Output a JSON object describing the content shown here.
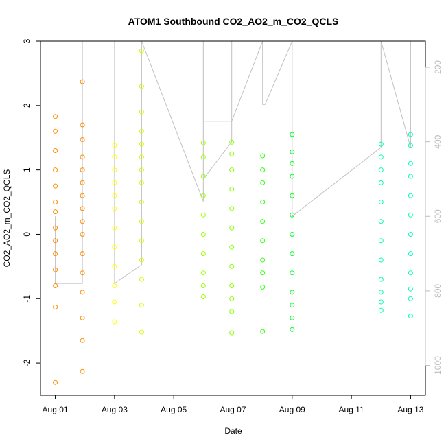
{
  "chart_data": {
    "type": "scatter",
    "title": "ATOM1 Southbound CO2_AO2_m_CO2_QCLS",
    "xlabel": "Date",
    "ylabel": "CO2_AO2_m_CO2_QCLS",
    "x_ticks": [
      "Aug 01",
      "Aug 03",
      "Aug 05",
      "Aug 07",
      "Aug 09",
      "Aug 11",
      "Aug 13"
    ],
    "y_ticks": [
      "-2",
      "-1",
      "0",
      "1",
      "2",
      "3"
    ],
    "y_right_ticks": [
      "200",
      "400",
      "600",
      "800",
      "1000"
    ],
    "xlim": [
      "2016-07-31T12:00",
      "2016-08-13T12:00"
    ],
    "ylim": [
      -2.5,
      3.0
    ],
    "y_right_lim": [
      1080,
      130
    ],
    "y_right_inverted": true,
    "grid": false,
    "colors": {
      "orange": "#ff8c00",
      "yellow": "#ffff00",
      "lime": "#ccff00",
      "green": "#66ff00",
      "bright_green": "#00ff22",
      "cyan": "#00ffcc",
      "track_line": "#c0c0c0",
      "right_axis": "#bdbdbd"
    },
    "series": [
      {
        "color": "#ff8c00",
        "x": [
          "2016-08-01T00:00",
          "2016-08-01T00:00",
          "2016-08-01T00:00",
          "2016-08-01T00:00",
          "2016-08-01T00:00",
          "2016-08-01T00:00",
          "2016-08-01T00:00",
          "2016-08-01T00:00",
          "2016-08-01T00:00",
          "2016-08-01T00:00",
          "2016-08-01T00:00",
          "2016-08-01T00:00",
          "2016-08-01T00:00",
          "2016-08-01T00:00"
        ],
        "y": [
          1.83,
          1.6,
          1.3,
          1.0,
          0.75,
          0.5,
          0.35,
          0.1,
          -0.1,
          -0.3,
          -0.55,
          -0.8,
          -1.13,
          -2.3
        ]
      },
      {
        "color": "#ff8c00",
        "x": [
          "2016-08-01T22:00",
          "2016-08-01T22:00",
          "2016-08-01T22:00",
          "2016-08-01T22:00",
          "2016-08-01T22:00",
          "2016-08-01T22:00",
          "2016-08-01T22:00",
          "2016-08-01T22:00",
          "2016-08-01T22:00",
          "2016-08-01T22:00",
          "2016-08-01T22:00",
          "2016-08-01T22:00",
          "2016-08-01T22:00",
          "2016-08-01T22:00",
          "2016-08-01T22:00",
          "2016-08-01T22:00"
        ],
        "y": [
          2.37,
          1.7,
          1.47,
          1.2,
          1.0,
          0.8,
          0.6,
          0.4,
          0.2,
          0.0,
          -0.3,
          -0.6,
          -0.9,
          -1.3,
          -1.65,
          -2.13
        ]
      },
      {
        "color": "#ffff00",
        "x": [
          "2016-08-03T00:00",
          "2016-08-03T00:00",
          "2016-08-03T00:00",
          "2016-08-03T00:00",
          "2016-08-03T00:00",
          "2016-08-03T00:00",
          "2016-08-03T00:00",
          "2016-08-03T00:00",
          "2016-08-03T00:00",
          "2016-08-03T00:00",
          "2016-08-03T00:00",
          "2016-08-03T00:00"
        ],
        "y": [
          1.38,
          1.2,
          1.0,
          0.8,
          0.6,
          0.4,
          0.1,
          -0.2,
          -0.5,
          -0.8,
          -1.05,
          -1.36
        ]
      },
      {
        "color": "#ccff00",
        "x": [
          "2016-08-03T22:00",
          "2016-08-03T22:00",
          "2016-08-03T22:00",
          "2016-08-03T22:00",
          "2016-08-03T22:00",
          "2016-08-03T22:00",
          "2016-08-03T22:00",
          "2016-08-03T22:00",
          "2016-08-03T22:00",
          "2016-08-03T22:00",
          "2016-08-03T22:00",
          "2016-08-03T22:00",
          "2016-08-03T22:00",
          "2016-08-03T22:00",
          "2016-08-03T22:00"
        ],
        "y": [
          2.85,
          2.3,
          1.9,
          1.6,
          1.4,
          1.2,
          1.0,
          0.8,
          0.5,
          0.2,
          -0.1,
          -0.4,
          -0.7,
          -1.1,
          -1.52
        ]
      },
      {
        "color": "#99ff00",
        "x": [
          "2016-08-06T00:00",
          "2016-08-06T00:00",
          "2016-08-06T00:00",
          "2016-08-06T00:00",
          "2016-08-06T00:00",
          "2016-08-06T00:00",
          "2016-08-06T00:00",
          "2016-08-06T00:00",
          "2016-08-06T00:00",
          "2016-08-06T00:00"
        ],
        "y": [
          1.42,
          1.2,
          0.9,
          0.6,
          0.3,
          0.0,
          -0.3,
          -0.6,
          -0.8,
          -0.97
        ]
      },
      {
        "color": "#88ff00",
        "x": [
          "2016-08-06T23:00",
          "2016-08-06T23:00",
          "2016-08-06T23:00",
          "2016-08-06T23:00",
          "2016-08-06T23:00",
          "2016-08-06T23:00",
          "2016-08-06T23:00",
          "2016-08-06T23:00",
          "2016-08-06T23:00",
          "2016-08-06T23:00",
          "2016-08-06T23:00",
          "2016-08-06T23:00"
        ],
        "y": [
          1.43,
          1.25,
          1.0,
          0.7,
          0.4,
          0.1,
          -0.2,
          -0.5,
          -0.8,
          -1.0,
          -1.2,
          -1.53
        ]
      },
      {
        "color": "#33ff11",
        "x": [
          "2016-08-08T00:00",
          "2016-08-08T00:00",
          "2016-08-08T00:00",
          "2016-08-08T00:00",
          "2016-08-08T00:00",
          "2016-08-08T00:00",
          "2016-08-08T00:00",
          "2016-08-08T00:00",
          "2016-08-08T00:00",
          "2016-08-08T00:00"
        ],
        "y": [
          1.22,
          1.0,
          0.8,
          0.5,
          0.2,
          -0.1,
          -0.4,
          -0.6,
          -0.82,
          -1.51
        ]
      },
      {
        "color": "#00ff22",
        "x": [
          "2016-08-09T00:00",
          "2016-08-09T00:00",
          "2016-08-09T00:00",
          "2016-08-09T00:00",
          "2016-08-09T00:00",
          "2016-08-09T00:00",
          "2016-08-09T00:00",
          "2016-08-09T00:00",
          "2016-08-09T00:00",
          "2016-08-09T00:00",
          "2016-08-09T00:00",
          "2016-08-09T00:00",
          "2016-08-09T00:00"
        ],
        "y": [
          1.55,
          1.28,
          1.1,
          0.9,
          0.6,
          0.3,
          0.0,
          -0.3,
          -0.6,
          -0.9,
          -1.1,
          -1.3,
          -1.48
        ]
      },
      {
        "color": "#00ffaa",
        "x": [
          "2016-08-12T00:00",
          "2016-08-12T00:00",
          "2016-08-12T00:00",
          "2016-08-12T00:00",
          "2016-08-12T00:00",
          "2016-08-12T00:00",
          "2016-08-12T00:00",
          "2016-08-12T00:00",
          "2016-08-12T00:00",
          "2016-08-12T00:00",
          "2016-08-12T00:00",
          "2016-08-12T00:00"
        ],
        "y": [
          1.4,
          1.2,
          1.0,
          0.8,
          0.5,
          0.2,
          -0.1,
          -0.4,
          -0.7,
          -0.9,
          -1.05,
          -1.18
        ]
      },
      {
        "color": "#00ffbb",
        "x": [
          "2016-08-13T00:00",
          "2016-08-13T00:00",
          "2016-08-13T00:00",
          "2016-08-13T00:00",
          "2016-08-13T00:00",
          "2016-08-13T00:00",
          "2016-08-13T00:00",
          "2016-08-13T00:00",
          "2016-08-13T00:00",
          "2016-08-13T00:00",
          "2016-08-13T00:00",
          "2016-08-13T00:00"
        ],
        "y": [
          1.55,
          1.38,
          1.1,
          0.9,
          0.6,
          0.3,
          0.0,
          -0.3,
          -0.6,
          -0.85,
          -1.0,
          -1.27
        ]
      }
    ],
    "track_right_axis": {
      "x": [
        "2016-08-01T00:00",
        "2016-08-01T00:00",
        "2016-08-01T22:00",
        "2016-08-01T22:00",
        "2016-08-02T22:00",
        "2016-08-03T00:00",
        "2016-08-03T00:00",
        "2016-08-03T22:00",
        "2016-08-03T22:00",
        "2016-08-06T00:00",
        "2016-08-06T00:00",
        "2016-08-06T23:00",
        "2016-08-06T23:00",
        "2016-08-06T00:00",
        "2016-08-06T00:00",
        "2016-08-06T23:00",
        "2016-08-08T00:00",
        "2016-08-08T00:00",
        "2016-08-08T02:00",
        "2016-08-09T00:00",
        "2016-08-09T00:00",
        "2016-08-12T00:00",
        "2016-08-12T00:00",
        "2016-08-13T00:00",
        "2016-08-13T00:00"
      ],
      "y": [
        600,
        780,
        780,
        130,
        130,
        130,
        780,
        730,
        130,
        560,
        130,
        130,
        400,
        500,
        345,
        345,
        130,
        300,
        300,
        130,
        600,
        415,
        130,
        415,
        130
      ]
    }
  }
}
